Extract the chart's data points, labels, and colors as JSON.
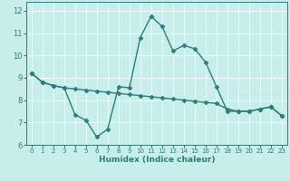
{
  "title": "",
  "xlabel": "Humidex (Indice chaleur)",
  "ylabel": "",
  "xlim": [
    -0.5,
    23.5
  ],
  "ylim": [
    6,
    12.4
  ],
  "yticks": [
    6,
    7,
    8,
    9,
    10,
    11,
    12
  ],
  "xticks": [
    0,
    1,
    2,
    3,
    4,
    5,
    6,
    7,
    8,
    9,
    10,
    11,
    12,
    13,
    14,
    15,
    16,
    17,
    18,
    19,
    20,
    21,
    22,
    23
  ],
  "bg_color": "#c8eeec",
  "grid_color": "#ffffff",
  "line_color": "#2d7d78",
  "line1_x": [
    0,
    1,
    2,
    3,
    4,
    5,
    6,
    7,
    8,
    9,
    10,
    11,
    12,
    13,
    14,
    15,
    16,
    17,
    18,
    19,
    20,
    21,
    22,
    23
  ],
  "line1_y": [
    9.2,
    8.8,
    8.65,
    8.55,
    7.35,
    7.1,
    6.35,
    6.7,
    8.6,
    8.55,
    10.8,
    11.75,
    11.3,
    10.2,
    10.45,
    10.3,
    9.7,
    8.6,
    7.5,
    7.5,
    7.5,
    7.6,
    7.7,
    7.3
  ],
  "line2_x": [
    0,
    1,
    2,
    3,
    4,
    5,
    6,
    7,
    8,
    9,
    10,
    11,
    12,
    13,
    14,
    15,
    16,
    17,
    18,
    19,
    20,
    21,
    22,
    23
  ],
  "line2_y": [
    9.2,
    8.8,
    8.65,
    8.55,
    8.5,
    8.45,
    8.4,
    8.35,
    8.3,
    8.25,
    8.2,
    8.15,
    8.1,
    8.05,
    8.0,
    7.95,
    7.9,
    7.85,
    7.6,
    7.5,
    7.5,
    7.6,
    7.7,
    7.3
  ],
  "marker": "D",
  "marker_size": 2.5,
  "line_width": 1.0
}
